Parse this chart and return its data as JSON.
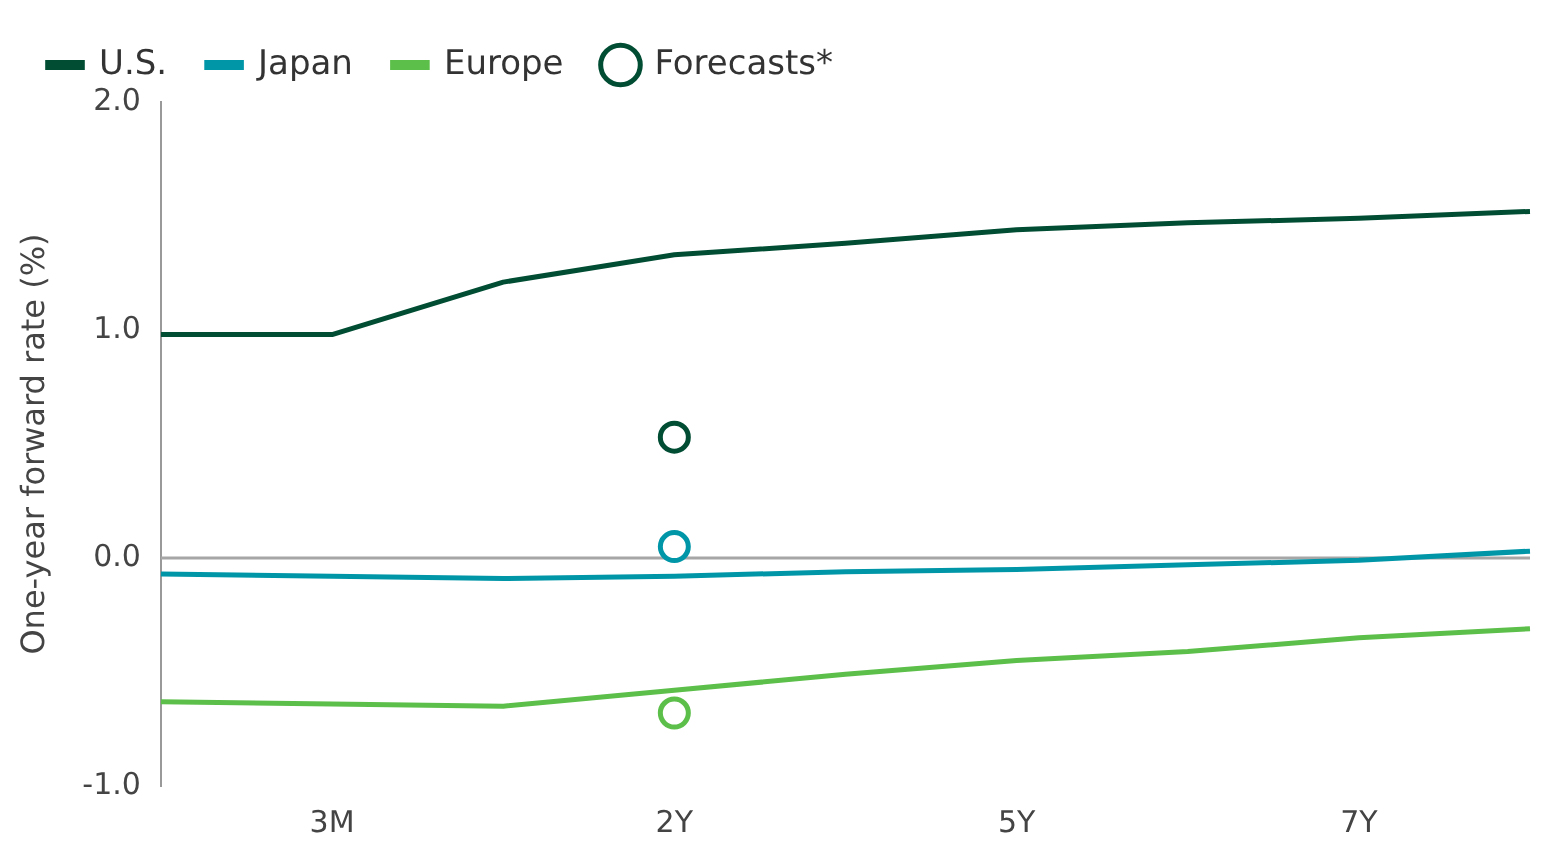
{
  "chart_data": {
    "type": "line",
    "ylabel": "One-year forward rate (%)",
    "categories": [
      null,
      "3M",
      null,
      "2Y",
      null,
      "5Y",
      null,
      "7Y",
      null
    ],
    "ylim": [
      -1,
      2
    ],
    "yticks": [
      {
        "value": -1,
        "label": "-1.0"
      },
      {
        "value": 0,
        "label": "0.0"
      },
      {
        "value": 1,
        "label": "1.0"
      },
      {
        "value": 2,
        "label": "2.0"
      }
    ],
    "grid": false,
    "legend": "top left",
    "marker": "none",
    "line_style": "solid",
    "ref_lines": [
      {
        "axis": "y",
        "value": 0,
        "color": "#a6a6a6"
      }
    ],
    "series": [
      {
        "name": "U.S.",
        "color": "#004d33",
        "values": [
          0.98,
          0.98,
          1.21,
          1.33,
          1.38,
          1.44,
          1.47,
          1.49,
          1.52
        ]
      },
      {
        "name": "Japan",
        "color": "#0096a8",
        "values": [
          -0.07,
          -0.08,
          -0.09,
          -0.08,
          -0.06,
          -0.05,
          -0.03,
          -0.01,
          0.03
        ]
      },
      {
        "name": "Europe",
        "color": "#5cbf4a",
        "values": [
          -0.63,
          -0.64,
          -0.65,
          -0.58,
          -0.51,
          -0.45,
          -0.41,
          -0.35,
          -0.31
        ]
      },
      {
        "type": "scatter",
        "name": "Forecasts*",
        "color": "#004d33",
        "marker": "circle",
        "x": [
          "2Y",
          "2Y",
          "2Y"
        ],
        "values": [
          0.53,
          0.05,
          -0.68
        ],
        "colors": [
          "#004d33",
          "#0096a8",
          "#5cbf4a"
        ]
      }
    ]
  }
}
